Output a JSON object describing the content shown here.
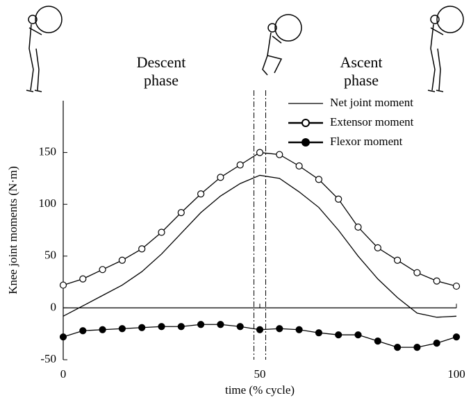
{
  "chart_data": {
    "type": "line",
    "xlabel": "time (% cycle)",
    "ylabel": "Knee joint moments (N·m)",
    "x": [
      0,
      5,
      10,
      15,
      20,
      25,
      30,
      35,
      40,
      45,
      50,
      55,
      60,
      65,
      70,
      75,
      80,
      85,
      90,
      95,
      100
    ],
    "series": [
      {
        "name": "Net joint moment",
        "color": "#000000",
        "marker": "none",
        "values": [
          -8,
          2,
          12,
          22,
          35,
          52,
          72,
          92,
          108,
          120,
          128,
          125,
          112,
          97,
          75,
          50,
          28,
          10,
          -5,
          -9,
          -8
        ]
      },
      {
        "name": "Extensor moment",
        "color": "#000000",
        "marker": "open",
        "values": [
          22,
          28,
          37,
          46,
          57,
          73,
          92,
          110,
          126,
          138,
          150,
          148,
          137,
          124,
          105,
          78,
          58,
          46,
          34,
          26,
          21
        ]
      },
      {
        "name": "Flexor moment",
        "color": "#000000",
        "marker": "filled",
        "values": [
          -28,
          -22,
          -21,
          -20,
          -19,
          -18,
          -18,
          -16,
          -16,
          -18,
          -21,
          -20,
          -21,
          -24,
          -26,
          -26,
          -32,
          -38,
          -38,
          -34,
          -28
        ]
      }
    ],
    "xlim": [
      0,
      100
    ],
    "xticks": [
      0,
      50,
      100
    ],
    "ylim": [
      -50,
      200
    ],
    "yticks": [
      -50,
      0,
      50,
      100,
      150
    ],
    "phase_lines": [
      48.5,
      51.5
    ],
    "annotations": [
      {
        "lines": [
          "Descent",
          "phase"
        ]
      },
      {
        "lines": [
          "Ascent",
          "phase"
        ]
      }
    ]
  }
}
